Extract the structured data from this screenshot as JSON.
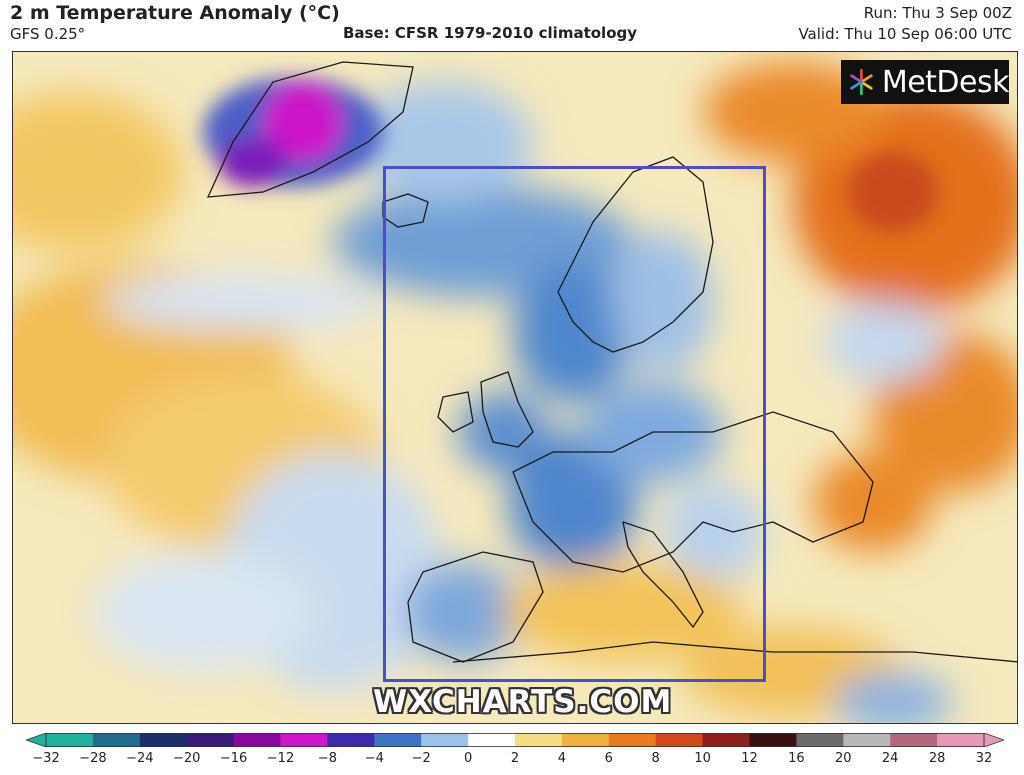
{
  "header": {
    "title": "2 m Temperature Anomaly (°C)",
    "model": "GFS 0.25°",
    "base": "Base: CFSR 1979-2010 climatology",
    "run": "Run: Thu 3 Sep 00Z",
    "valid": "Valid: Thu 10 Sep 06:00 UTC"
  },
  "logo": {
    "text": "MetDesk",
    "icon": "metdesk-star-icon"
  },
  "watermark": "WXCHARTS.COM",
  "highlight": {
    "color": "#4a4fc8",
    "label": ""
  },
  "colorbar": {
    "ticks": [
      "−32",
      "−28",
      "−24",
      "−20",
      "−16",
      "−12",
      "−8",
      "−4",
      "−2",
      "0",
      "2",
      "4",
      "6",
      "8",
      "10",
      "12",
      "16",
      "20",
      "24",
      "28",
      "32"
    ],
    "colors": [
      "#1fb39b",
      "#1f6e8c",
      "#1d2f6b",
      "#3b1a78",
      "#8a0aa0",
      "#cf16c9",
      "#3d2bb0",
      "#3f73c6",
      "#9cc3ea",
      "#ffffff",
      "#f6dc84",
      "#f1b13e",
      "#e97a1e",
      "#d4471c",
      "#8e1f1a",
      "#3a1010",
      "#6a6a6a",
      "#b8b8b8",
      "#b06a7a",
      "#e79ab8"
    ]
  },
  "map_colors": {
    "cold_strong": "#cc14c8",
    "cold": "#3d78c9",
    "cool": "#b9d4ee",
    "neutral": "#f6efd8",
    "warm": "#f2c25c",
    "hot": "#e27a22",
    "very_hot": "#c94a1b"
  }
}
